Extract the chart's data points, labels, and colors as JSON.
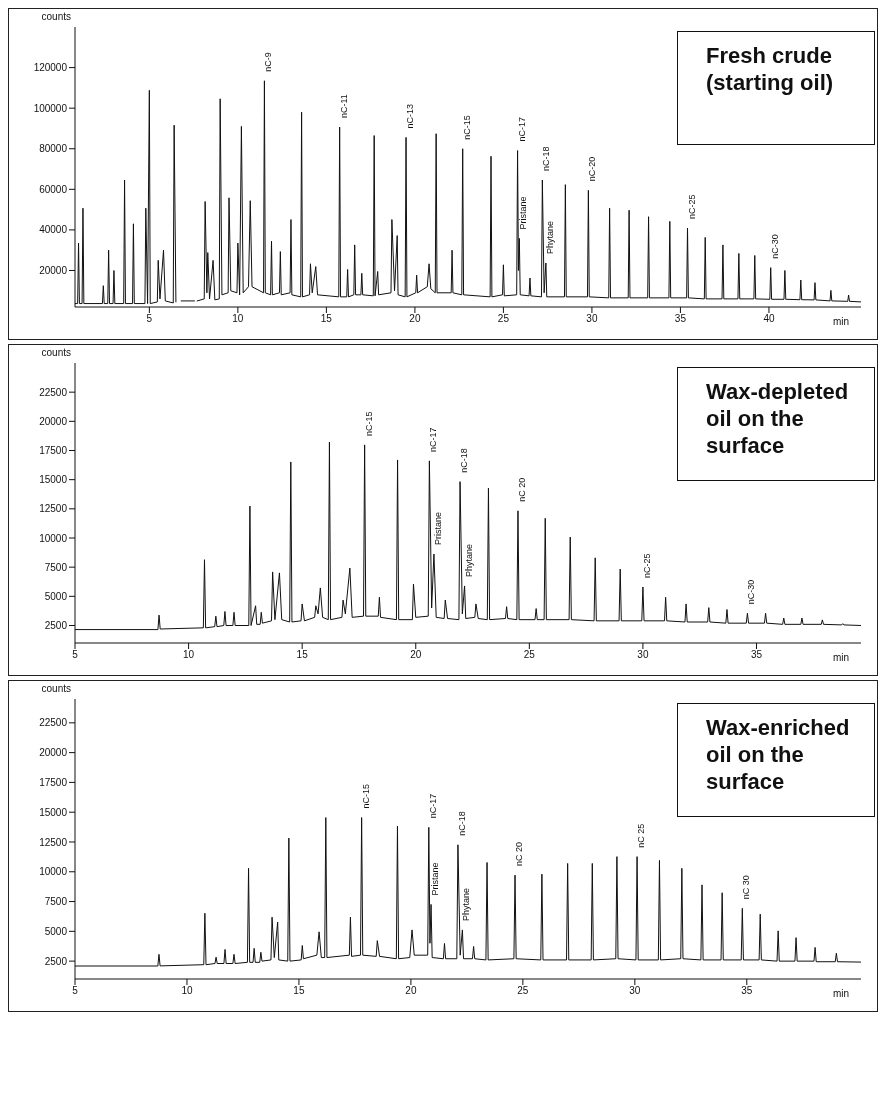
{
  "chart_data": [
    {
      "type": "line",
      "xlabel": "min",
      "ylabel": "counts",
      "color": "#111111",
      "xlim": [
        0.8,
        45.2
      ],
      "xticks": [
        5,
        10,
        15,
        20,
        25,
        30,
        35,
        40
      ],
      "ylim": [
        2000,
        140000
      ],
      "yticks": [
        20000,
        40000,
        60000,
        80000,
        100000,
        120000
      ],
      "grid": false,
      "legend": false,
      "marker": "none",
      "line_style": "solid",
      "x": [
        0.8,
        0.95,
        1.0,
        1.05,
        1.2,
        1.25,
        1.3,
        2.35,
        2.4,
        2.45,
        2.65,
        2.7,
        2.75,
        2.95,
        3.0,
        3.05,
        3.55,
        3.6,
        3.65,
        4.05,
        4.1,
        4.15,
        4.75,
        4.8,
        4.9,
        5.0,
        5.05,
        5.45,
        5.5,
        5.6,
        5.8,
        5.9,
        6.35,
        6.4,
        6.5,
        6.7,
        6.8,
        7.55,
        7.6,
        7.7,
        8.1,
        8.15,
        8.25,
        8.3,
        8.4,
        8.6,
        8.7,
        8.95,
        9.0,
        9.1,
        9.45,
        9.5,
        9.6,
        9.95,
        10.0,
        10.1,
        10.2,
        10.3,
        10.6,
        10.7,
        10.8,
        11.45,
        11.5,
        11.55,
        11.85,
        11.9,
        11.95,
        12.35,
        12.4,
        12.45,
        12.95,
        13.0,
        13.05,
        13.55,
        13.6,
        13.65,
        14.05,
        14.1,
        14.2,
        14.4,
        14.5,
        15.7,
        15.75,
        15.8,
        16.15,
        16.2,
        16.25,
        16.55,
        16.6,
        16.65,
        16.95,
        17.0,
        17.05,
        17.65,
        17.7,
        17.75,
        17.9,
        17.95,
        18.65,
        18.7,
        18.85,
        19.0,
        19.05,
        19.45,
        19.5,
        19.55,
        20.05,
        20.1,
        20.15,
        20.7,
        20.8,
        20.9,
        21.15,
        21.2,
        21.25,
        22.05,
        22.1,
        22.15,
        22.65,
        22.7,
        22.75,
        24.25,
        24.3,
        24.35,
        24.95,
        25.0,
        25.05,
        25.75,
        25.8,
        25.85,
        25.9,
        25.95,
        26.45,
        26.5,
        26.55,
        27.15,
        27.2,
        27.3,
        27.4,
        27.45,
        28.45,
        28.5,
        28.55,
        29.75,
        29.8,
        29.85,
        30.95,
        31.0,
        31.05,
        32.05,
        32.1,
        32.15,
        33.15,
        33.2,
        33.25,
        34.35,
        34.4,
        34.45,
        35.35,
        35.4,
        35.45,
        36.35,
        36.4,
        36.45,
        37.35,
        37.4,
        37.45,
        38.25,
        38.3,
        38.35,
        39.15,
        39.2,
        39.25,
        40.05,
        40.1,
        40.15,
        40.85,
        40.9,
        40.95,
        41.75,
        41.8,
        41.85,
        42.55,
        42.6,
        42.65,
        43.45,
        43.5,
        43.55,
        44.45,
        44.5,
        44.55,
        45.2
      ],
      "values": [
        3700,
        3700,
        33500,
        3700,
        3700,
        50700,
        3700,
        3700,
        12500,
        3700,
        3700,
        30000,
        3700,
        3700,
        20000,
        3700,
        3700,
        64600,
        3700,
        3700,
        43000,
        3700,
        3700,
        50700,
        3700,
        108800,
        3700,
        4500,
        25000,
        6000,
        30000,
        5000,
        4000,
        91600,
        4500,
        null,
        5000,
        5000,
        null,
        5000,
        6000,
        54000,
        9000,
        28800,
        6000,
        25000,
        5500,
        6000,
        104600,
        8000,
        9000,
        55800,
        10000,
        9000,
        33500,
        8000,
        91000,
        9000,
        12000,
        54400,
        12000,
        9000,
        113500,
        9000,
        8000,
        34400,
        8000,
        9000,
        29300,
        8000,
        9000,
        45100,
        8000,
        7000,
        98000,
        7000,
        8000,
        23300,
        9000,
        21900,
        8000,
        7000,
        90700,
        7000,
        7000,
        20500,
        7000,
        8000,
        32600,
        8000,
        8000,
        18600,
        8000,
        7500,
        86500,
        7500,
        19500,
        8000,
        9000,
        45100,
        10000,
        37200,
        8000,
        7000,
        85600,
        7000,
        9000,
        17700,
        9000,
        12000,
        23300,
        11000,
        9000,
        87400,
        9000,
        9000,
        30000,
        9000,
        8000,
        80000,
        8000,
        7000,
        76300,
        7000,
        8000,
        22800,
        7500,
        8000,
        79100,
        20000,
        35800,
        8000,
        7500,
        16300,
        7500,
        7000,
        64600,
        9000,
        23700,
        7000,
        7000,
        62300,
        7000,
        7000,
        59500,
        7000,
        6500,
        50700,
        6500,
        6500,
        49700,
        6500,
        6500,
        46500,
        6500,
        6500,
        44200,
        6500,
        6500,
        40900,
        6500,
        6000,
        36300,
        6000,
        6000,
        32600,
        6000,
        6000,
        28400,
        6000,
        6000,
        27400,
        6000,
        5800,
        21400,
        5800,
        5800,
        20000,
        5800,
        5600,
        15300,
        5600,
        5500,
        14000,
        5500,
        5000,
        10200,
        5000,
        4800,
        7900,
        4800,
        4500
      ],
      "annotations": [
        "Fresh crude (starting oil)",
        {
          "text": "nC-9",
          "x": 11.5,
          "y": 113500
        },
        {
          "text": "nC-11",
          "x": 15.75,
          "y": 90700
        },
        {
          "text": "nC-13",
          "x": 19.5,
          "y": 85600
        },
        {
          "text": "nC-15",
          "x": 22.7,
          "y": 80000
        },
        {
          "text": "nC-17",
          "x": 25.8,
          "y": 79100
        },
        {
          "text": "Pristane",
          "x": 25.9,
          "y": 35800
        },
        {
          "text": "nC-18",
          "x": 27.2,
          "y": 64600
        },
        {
          "text": "Phytane",
          "x": 27.4,
          "y": 23700
        },
        {
          "text": "nC-20",
          "x": 29.8,
          "y": 59500
        },
        {
          "text": "nC-25",
          "x": 35.4,
          "y": 40900
        },
        {
          "text": "nC-30",
          "x": 40.1,
          "y": 21400
        }
      ]
    },
    {
      "type": "line",
      "xlabel": "min",
      "ylabel": "counts",
      "color": "#111111",
      "xlim": [
        5,
        39.6
      ],
      "xticks": [
        5,
        10,
        15,
        20,
        25,
        30,
        35
      ],
      "ylim": [
        1000,
        25000
      ],
      "yticks": [
        2500,
        5000,
        7500,
        10000,
        12500,
        15000,
        17500,
        20000,
        22500
      ],
      "grid": false,
      "legend": false,
      "marker": "none",
      "line_style": "solid",
      "x": [
        5,
        8.65,
        8.7,
        8.75,
        10.65,
        10.7,
        10.75,
        11.15,
        11.2,
        11.25,
        11.55,
        11.6,
        11.65,
        11.95,
        12.0,
        12.05,
        12.65,
        12.7,
        12.75,
        12.95,
        13.0,
        13.15,
        13.2,
        13.25,
        13.65,
        13.7,
        13.8,
        14.0,
        14.1,
        14.45,
        14.5,
        14.55,
        14.95,
        15.0,
        15.1,
        15.55,
        15.6,
        15.7,
        15.8,
        15.9,
        16.15,
        16.2,
        16.25,
        16.75,
        16.8,
        16.9,
        17.1,
        17.2,
        17.7,
        17.75,
        17.8,
        18.35,
        18.4,
        18.45,
        19.15,
        19.2,
        19.25,
        19.85,
        19.9,
        20.0,
        20.55,
        20.6,
        20.7,
        20.8,
        20.9,
        21.25,
        21.3,
        21.4,
        21.9,
        21.95,
        22.05,
        22.15,
        22.2,
        22.6,
        22.65,
        22.75,
        23.15,
        23.2,
        23.25,
        23.95,
        24.0,
        24.05,
        24.45,
        24.5,
        24.55,
        25.25,
        25.3,
        25.35,
        25.65,
        25.7,
        25.75,
        26.75,
        26.8,
        26.85,
        27.85,
        27.9,
        27.95,
        28.95,
        29.0,
        29.05,
        29.95,
        30.0,
        30.05,
        30.95,
        31.0,
        31.05,
        31.85,
        31.9,
        31.95,
        32.85,
        32.9,
        32.95,
        33.65,
        33.7,
        33.75,
        34.55,
        34.6,
        34.65,
        35.35,
        35.4,
        35.45,
        36.15,
        36.2,
        36.25,
        36.95,
        37.0,
        37.05,
        37.85,
        37.9,
        37.95,
        38.75,
        38.8,
        38.85,
        39.6
      ],
      "values": [
        2150,
        2150,
        3390,
        2200,
        2300,
        8140,
        2300,
        2400,
        3300,
        2400,
        2500,
        3700,
        2500,
        2500,
        3630,
        2500,
        2500,
        12740,
        2500,
        4190,
        2600,
        2600,
        3630,
        2700,
        2900,
        7090,
        3000,
        7010,
        3000,
        2800,
        16520,
        2800,
        2900,
        4350,
        2900,
        3200,
        4190,
        3500,
        5720,
        3200,
        3000,
        18220,
        3000,
        3200,
        4680,
        3500,
        7420,
        3200,
        3300,
        17980,
        3300,
        3300,
        4920,
        3200,
        3000,
        16690,
        3000,
        3000,
        6050,
        3200,
        3300,
        16610,
        4000,
        8630,
        3200,
        3100,
        4680,
        3100,
        3000,
        14830,
        3500,
        5890,
        3100,
        3200,
        4350,
        3100,
        3000,
        14270,
        3000,
        3100,
        4110,
        3100,
        3000,
        12330,
        3000,
        3000,
        3950,
        3000,
        3000,
        11690,
        3000,
        3000,
        10080,
        3000,
        2900,
        8300,
        2900,
        2900,
        7340,
        2900,
        2900,
        5800,
        2900,
        2900,
        4920,
        2900,
        2800,
        4350,
        2800,
        2800,
        4030,
        2800,
        2700,
        3870,
        2700,
        2700,
        3550,
        2700,
        2700,
        3550,
        2700,
        2600,
        3140,
        2600,
        2600,
        3140,
        2600,
        2600,
        2980,
        2600,
        2550,
        2660,
        2550,
        2500
      ],
      "annotations": [
        "Wax-depleted oil on the surface",
        {
          "text": "nC-15",
          "x": 17.75,
          "y": 17980
        },
        {
          "text": "nC-17",
          "x": 20.6,
          "y": 16610
        },
        {
          "text": "Pristane",
          "x": 20.8,
          "y": 8630
        },
        {
          "text": "nC-18",
          "x": 21.95,
          "y": 14830
        },
        {
          "text": "Phytane",
          "x": 22.15,
          "y": 5890
        },
        {
          "text": "nC 20",
          "x": 24.5,
          "y": 12330
        },
        {
          "text": "nC-25",
          "x": 30.0,
          "y": 5800
        },
        {
          "text": "nC-30",
          "x": 34.6,
          "y": 3550
        }
      ]
    },
    {
      "type": "line",
      "xlabel": "min",
      "ylabel": "counts",
      "color": "#111111",
      "xlim": [
        5,
        40.1
      ],
      "xticks": [
        5,
        10,
        15,
        20,
        25,
        30,
        35
      ],
      "ylim": [
        1000,
        24500
      ],
      "yticks": [
        2500,
        5000,
        7500,
        10000,
        12500,
        15000,
        17500,
        20000,
        22500
      ],
      "grid": false,
      "legend": false,
      "marker": "none",
      "line_style": "solid",
      "x": [
        5,
        8.7,
        8.75,
        8.8,
        10.75,
        10.8,
        10.85,
        11.25,
        11.3,
        11.35,
        11.65,
        11.7,
        11.75,
        12.05,
        12.1,
        12.15,
        12.7,
        12.75,
        12.8,
        12.95,
        13.0,
        13.05,
        13.25,
        13.3,
        13.35,
        13.75,
        13.8,
        13.9,
        14.05,
        14.1,
        14.5,
        14.55,
        14.6,
        15.1,
        15.15,
        15.2,
        15.8,
        15.9,
        16.0,
        16.15,
        16.2,
        16.25,
        17.25,
        17.3,
        17.35,
        17.75,
        17.8,
        17.85,
        18.45,
        18.5,
        18.6,
        19.35,
        19.4,
        19.45,
        19.95,
        20.05,
        20.15,
        20.75,
        20.8,
        20.85,
        20.9,
        20.95,
        21.45,
        21.5,
        21.55,
        22.05,
        22.1,
        22.2,
        22.3,
        22.35,
        22.75,
        22.8,
        22.85,
        23.35,
        23.4,
        23.45,
        24.6,
        24.65,
        24.7,
        25.8,
        25.85,
        25.9,
        26.95,
        27.0,
        27.05,
        28.05,
        28.1,
        28.15,
        29.15,
        29.2,
        29.25,
        30.05,
        30.1,
        30.15,
        31.05,
        31.1,
        31.15,
        32.05,
        32.1,
        32.15,
        32.95,
        33.0,
        33.05,
        33.85,
        33.9,
        33.95,
        34.75,
        34.8,
        34.85,
        35.55,
        35.6,
        35.65,
        36.35,
        36.4,
        36.45,
        37.15,
        37.2,
        37.25,
        38.0,
        38.05,
        38.1,
        38.95,
        39.0,
        39.05,
        40.1
      ],
      "values": [
        2090,
        2090,
        3070,
        2100,
        2200,
        6520,
        2200,
        2300,
        2830,
        2300,
        2300,
        3480,
        2300,
        2300,
        3070,
        2300,
        2400,
        10290,
        2400,
        2400,
        3570,
        2400,
        2400,
        3240,
        2500,
        2600,
        6190,
        2800,
        5780,
        2600,
        2500,
        12830,
        2500,
        2600,
        3810,
        2700,
        3000,
        4960,
        2800,
        2800,
        14550,
        2800,
        3000,
        6190,
        2900,
        3000,
        14550,
        3000,
        2900,
        4220,
        2900,
        2700,
        13820,
        2700,
        2800,
        5120,
        3000,
        3000,
        13730,
        4000,
        7260,
        2800,
        2700,
        3980,
        2700,
        2700,
        12260,
        3000,
        5120,
        2700,
        2700,
        3730,
        2700,
        2600,
        10780,
        2600,
        2700,
        9720,
        2700,
        2600,
        9800,
        2600,
        2600,
        10700,
        2600,
        2600,
        10700,
        2600,
        2700,
        11270,
        2700,
        2600,
        11270,
        2600,
        2600,
        10950,
        2600,
        2700,
        10290,
        2700,
        2600,
        8900,
        2600,
        2600,
        8240,
        2600,
        2600,
        6930,
        2600,
        2600,
        6440,
        2600,
        2500,
        5040,
        2500,
        2500,
        4470,
        2500,
        2500,
        3650,
        2450,
        2450,
        3160,
        2450,
        2420
      ],
      "annotations": [
        "Wax-enriched oil on the surface",
        {
          "text": "nC-15",
          "x": 17.8,
          "y": 14550
        },
        {
          "text": "nC-17",
          "x": 20.8,
          "y": 13730
        },
        {
          "text": "Pristane",
          "x": 20.9,
          "y": 7260
        },
        {
          "text": "nC-18",
          "x": 22.1,
          "y": 12260
        },
        {
          "text": "Phytane",
          "x": 22.3,
          "y": 5120
        },
        {
          "text": "nC 20",
          "x": 24.65,
          "y": 9720
        },
        {
          "text": "nC 25",
          "x": 30.1,
          "y": 11270
        },
        {
          "text": "nC 30",
          "x": 34.8,
          "y": 6930
        }
      ]
    }
  ]
}
